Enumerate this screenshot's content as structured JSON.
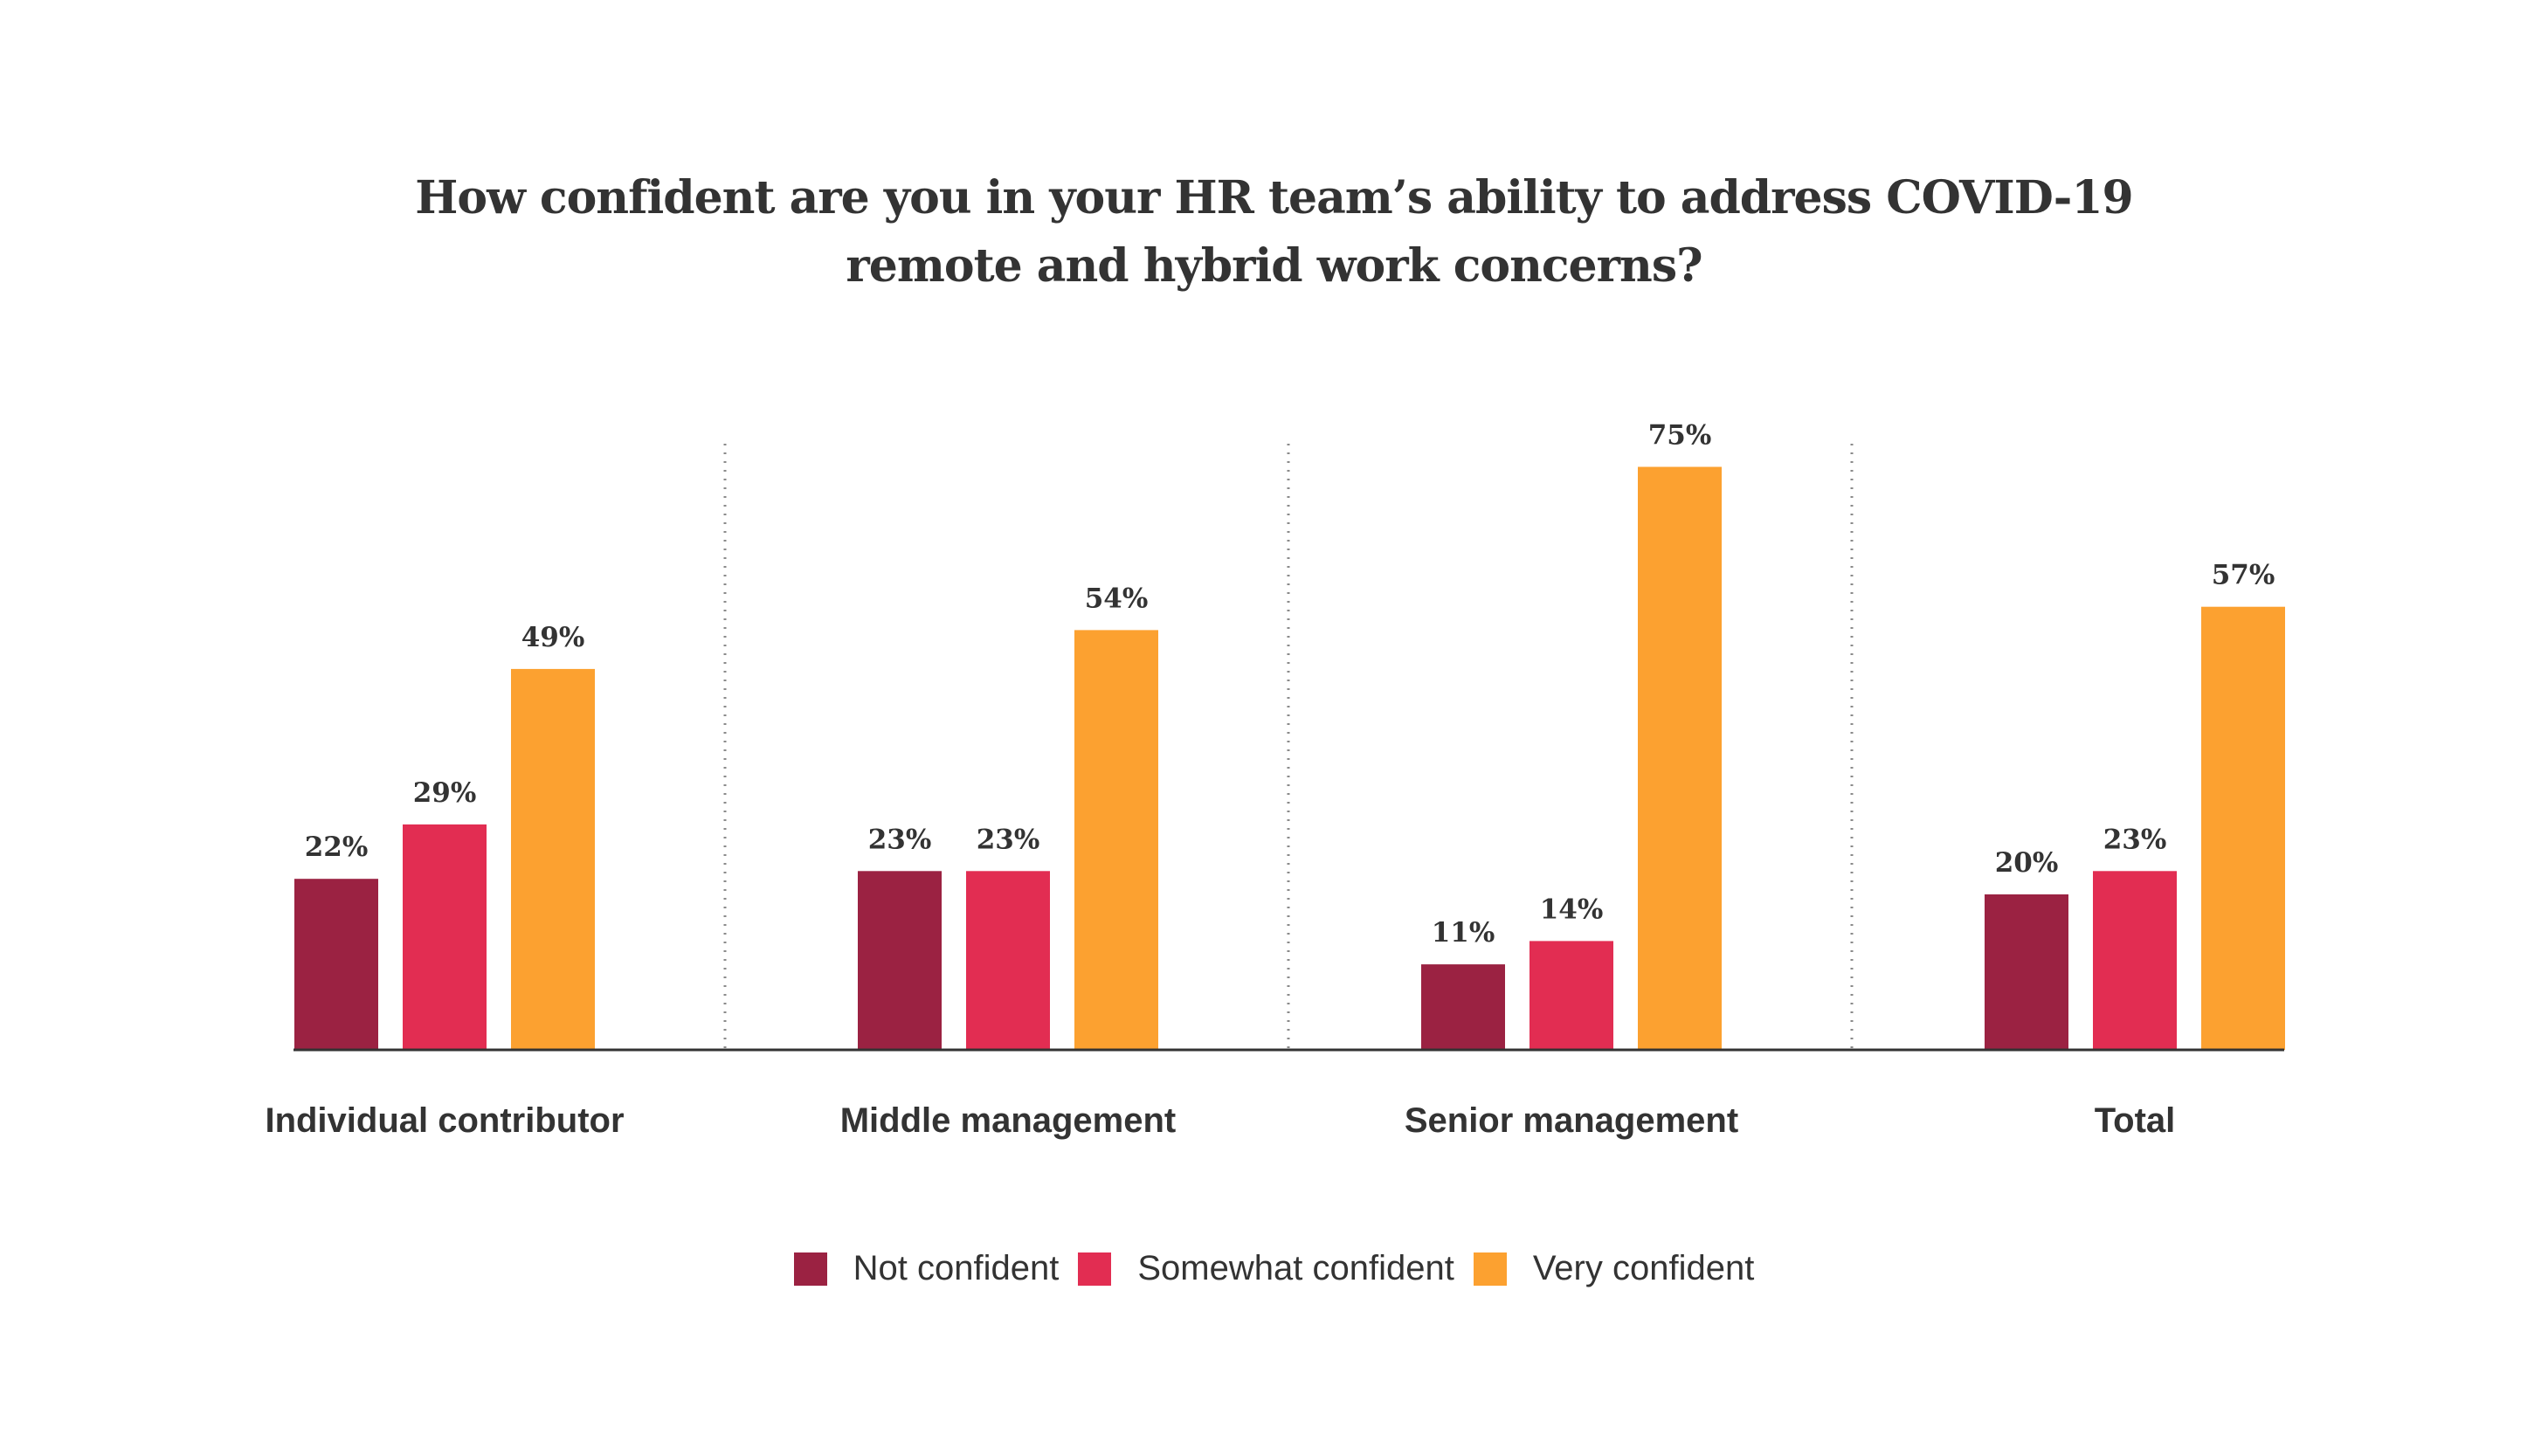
{
  "chart_data": {
    "type": "bar",
    "title": "How confident are you in your HR team’s ability to address COVID-19 remote and hybrid work concerns?",
    "title_lines": [
      "How confident are you in your HR team’s ability to address COVID-19",
      "remote and hybrid work concerns?"
    ],
    "categories": [
      "Individual contributor",
      "Middle management",
      "Senior management",
      "Total"
    ],
    "series": [
      {
        "name": "Not confident",
        "color": "#9b2242",
        "values": [
          22,
          23,
          11,
          20
        ],
        "labels": [
          "22%",
          "23%",
          "11%",
          "20%"
        ]
      },
      {
        "name": "Somewhat confident",
        "color": "#e22d52",
        "values": [
          29,
          23,
          14,
          23
        ],
        "labels": [
          "29%",
          "23%",
          "14%",
          "23%"
        ]
      },
      {
        "name": "Very confident",
        "color": "#fca130",
        "values": [
          49,
          54,
          75,
          57
        ],
        "labels": [
          "49%",
          "54%",
          "75%",
          "57%"
        ]
      }
    ],
    "ylim": [
      0,
      100
    ],
    "grid": false,
    "group_separators": "dotted",
    "legend_position": "bottom-center"
  }
}
